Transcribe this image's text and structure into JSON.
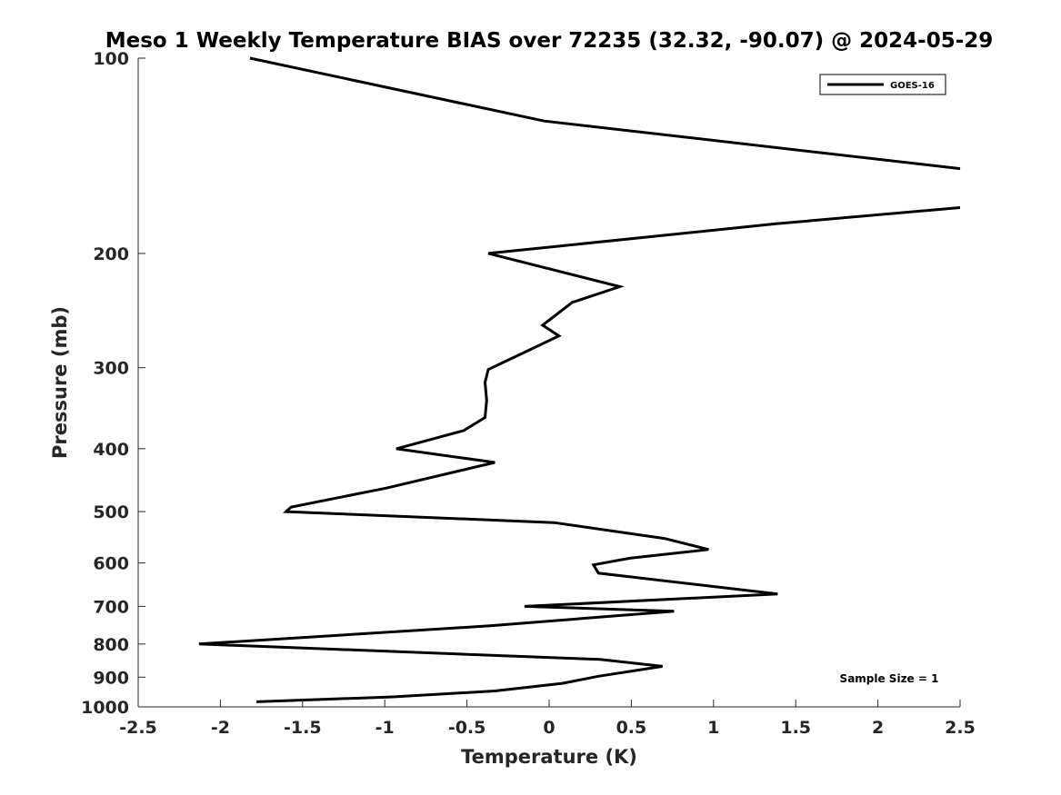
{
  "chart_data": {
    "type": "line",
    "title": "Meso 1 Weekly Temperature BIAS over 72235 (32.32, -90.07) @ 2024-05-29",
    "xlabel": "Temperature (K)",
    "ylabel": "Pressure (mb)",
    "xlim": [
      -2.5,
      2.5
    ],
    "ylim": [
      1000,
      100
    ],
    "y_scale": "log",
    "y_reversed": true,
    "x_ticks": [
      "-2.5",
      "-2",
      "-1.5",
      "-1",
      "-0.5",
      "0",
      "0.5",
      "1",
      "1.5",
      "2",
      "2.5"
    ],
    "y_ticks": [
      "100",
      "200",
      "300",
      "400",
      "500",
      "600",
      "700",
      "800",
      "900",
      "1000"
    ],
    "x_tick_values": [
      -2.5,
      -2,
      -1.5,
      -1,
      -0.5,
      0,
      0.5,
      1,
      1.5,
      2,
      2.5
    ],
    "y_tick_values": [
      100,
      200,
      300,
      400,
      500,
      600,
      700,
      800,
      900,
      1000
    ],
    "grid": false,
    "legend_position": "top-right",
    "annotation": "Sample Size = 1",
    "color": "#000000",
    "series": [
      {
        "name": "GOES-16",
        "points": [
          [
            -1.82,
            100
          ],
          [
            -0.03,
            125
          ],
          [
            2.5,
            148
          ],
          [
            null,
            null
          ],
          [
            2.5,
            170
          ],
          [
            1.38,
            180
          ],
          [
            -0.37,
            200
          ],
          [
            0.43,
            225
          ],
          [
            0.14,
            238
          ],
          [
            -0.04,
            258
          ],
          [
            0.06,
            268
          ],
          [
            -0.37,
            302
          ],
          [
            -0.39,
            316
          ],
          [
            -0.38,
            337
          ],
          [
            -0.39,
            358
          ],
          [
            -0.52,
            375
          ],
          [
            -0.93,
            400
          ],
          [
            -0.33,
            420
          ],
          [
            -0.99,
            460
          ],
          [
            -1.57,
            492
          ],
          [
            -1.6,
            500
          ],
          [
            0.03,
            520
          ],
          [
            0.7,
            550
          ],
          [
            0.97,
            572
          ],
          [
            0.49,
            590
          ],
          [
            0.27,
            604
          ],
          [
            0.3,
            622
          ],
          [
            1.39,
            670
          ],
          [
            -0.15,
            700
          ],
          [
            0.76,
            712
          ],
          [
            -0.36,
            750
          ],
          [
            -2.13,
            800
          ],
          [
            0.31,
            845
          ],
          [
            0.69,
            866
          ],
          [
            0.3,
            897
          ],
          [
            0.08,
            920
          ],
          [
            -0.33,
            945
          ],
          [
            -0.95,
            965
          ],
          [
            -1.78,
            982
          ]
        ]
      }
    ]
  }
}
